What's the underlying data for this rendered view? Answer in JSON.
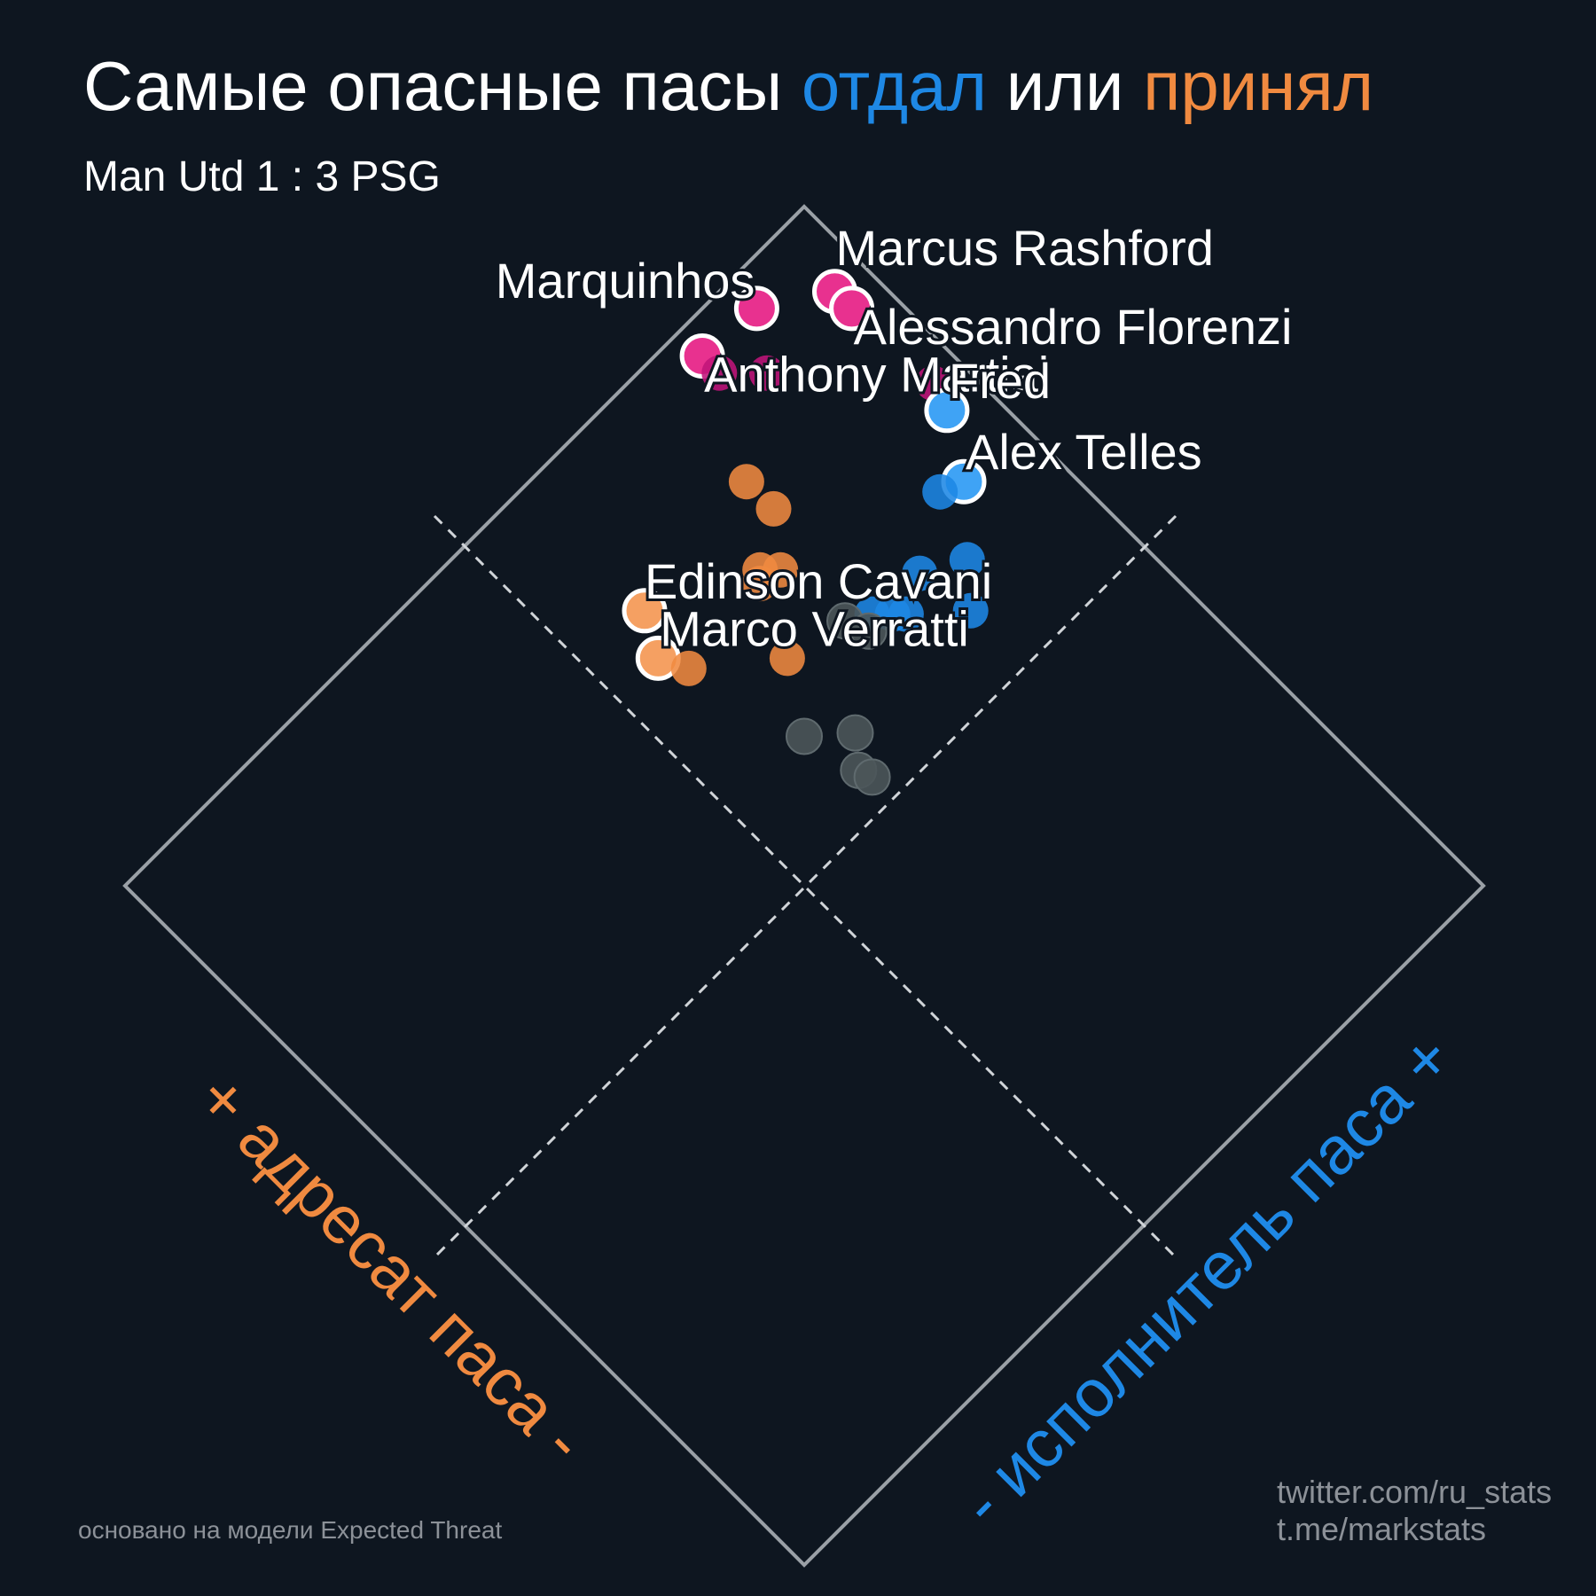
{
  "title": {
    "part1": "Самые опасные пасы ",
    "part2": "отдал",
    "part3": " или ",
    "part4": "принял"
  },
  "subtitle": "Man Utd 1 : 3 PSG",
  "note": "основано на модели Expected Threat",
  "credits": {
    "line1": "twitter.com/ru_stats",
    "line2": "t.me/markstats"
  },
  "colors": {
    "background": "#0e1620",
    "passer": "#1e88e5",
    "receiver": "#f08a40",
    "both": "#c0147a",
    "both_highlight": "#e8318f",
    "low": "#4b5559",
    "frame": "#9aa0a6"
  },
  "chart_data": {
    "type": "scatter",
    "x_axis_label": "- исполнитель паса +",
    "y_axis_label": "+ адресат паса -",
    "grid": false,
    "players": [
      {
        "name": "Marcus Rashford",
        "passer": 9.2,
        "receiver": 8.3,
        "group": "both",
        "highlight": true
      },
      {
        "name": "Alessandro Florenzi",
        "passer": 9.2,
        "receiver": 7.8,
        "group": "both",
        "highlight": true
      },
      {
        "name": "Marquinhos",
        "passer": 7.8,
        "receiver": 9.2,
        "group": "both",
        "highlight": true
      },
      {
        "name": "Anthony Martial",
        "passer": 6.3,
        "receiver": 9.3,
        "group": "both",
        "highlight": true
      },
      {
        "name": "",
        "passer": 6.3,
        "receiver": 8.8,
        "group": "both",
        "highlight": false
      },
      {
        "name": "",
        "passer": 7.0,
        "receiver": 8.1,
        "group": "both",
        "highlight": false
      },
      {
        "name": "",
        "passer": 9.3,
        "receiver": 5.5,
        "group": "both",
        "highlight": false
      },
      {
        "name": "Fred",
        "passer": 9.1,
        "receiver": 4.9,
        "group": "passer",
        "highlight": true
      },
      {
        "name": "Alex Telles",
        "passer": 8.3,
        "receiver": 3.6,
        "group": "passer",
        "highlight": true
      },
      {
        "name": "",
        "passer": 7.8,
        "receiver": 3.8,
        "group": "passer",
        "highlight": false
      },
      {
        "name": "",
        "passer": 7.2,
        "receiver": 2.4,
        "group": "passer",
        "highlight": false
      },
      {
        "name": "",
        "passer": 6.3,
        "receiver": 2.9,
        "group": "passer",
        "highlight": false
      },
      {
        "name": "",
        "passer": 6.5,
        "receiver": 1.6,
        "group": "passer",
        "highlight": false
      },
      {
        "name": "",
        "passer": 5.3,
        "receiver": 2.7,
        "group": "passer",
        "highlight": false
      },
      {
        "name": "",
        "passer": 5.0,
        "receiver": 3.0,
        "group": "passer",
        "highlight": false
      },
      {
        "name": "",
        "passer": 5.5,
        "receiver": 2.5,
        "group": "passer",
        "highlight": false
      },
      {
        "name": "Edinson Cavani",
        "passer": 1.7,
        "receiver": 6.4,
        "group": "receiver",
        "highlight": true
      },
      {
        "name": "Marco Verratti",
        "passer": 1.2,
        "receiver": 5.5,
        "group": "receiver",
        "highlight": true
      },
      {
        "name": "",
        "passer": 5.1,
        "receiver": 6.8,
        "group": "receiver",
        "highlight": false
      },
      {
        "name": "",
        "passer": 5.1,
        "receiver": 6.0,
        "group": "receiver",
        "highlight": false
      },
      {
        "name": "",
        "passer": 3.8,
        "receiver": 5.1,
        "group": "receiver",
        "highlight": false
      },
      {
        "name": "",
        "passer": 4.0,
        "receiver": 5.3,
        "group": "receiver",
        "highlight": false
      },
      {
        "name": "",
        "passer": 4.3,
        "receiver": 5.0,
        "group": "receiver",
        "highlight": false
      },
      {
        "name": "",
        "passer": 1.5,
        "receiver": 4.9,
        "group": "receiver",
        "highlight": false
      },
      {
        "name": "",
        "passer": 3.1,
        "receiver": 3.6,
        "group": "receiver",
        "highlight": false
      },
      {
        "name": "",
        "passer": 4.5,
        "receiver": 3.3,
        "group": "low",
        "highlight": false
      },
      {
        "name": "",
        "passer": 4.7,
        "receiver": 2.8,
        "group": "low",
        "highlight": false
      },
      {
        "name": "",
        "passer": 2.2,
        "receiver": 2.2,
        "group": "low",
        "highlight": false
      },
      {
        "name": "",
        "passer": 3.0,
        "receiver": 1.5,
        "group": "low",
        "highlight": false
      },
      {
        "name": "",
        "passer": 2.5,
        "receiver": 0.9,
        "group": "low",
        "highlight": false
      },
      {
        "name": "",
        "passer": 2.6,
        "receiver": 0.6,
        "group": "low",
        "highlight": false
      }
    ]
  }
}
